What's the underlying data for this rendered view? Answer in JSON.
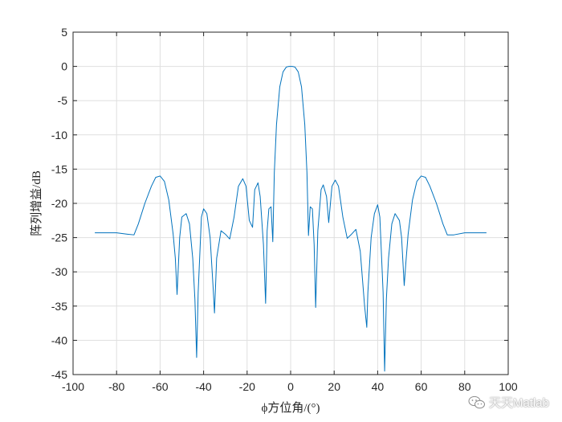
{
  "chart_data": {
    "type": "line",
    "title": "",
    "xlabel": "ϕ方位角/(°)",
    "ylabel": "阵列增益/dB",
    "xlim": [
      -100,
      100
    ],
    "ylim": [
      -45,
      5
    ],
    "xticks": [
      -100,
      -80,
      -60,
      -40,
      -20,
      0,
      20,
      40,
      60,
      80,
      100
    ],
    "yticks": [
      5,
      0,
      -5,
      -10,
      -15,
      -20,
      -25,
      -30,
      -35,
      -40,
      -45
    ],
    "grid": true,
    "legend": "none",
    "series": [
      {
        "color": "#0072BD",
        "x": [
          -90,
          -80,
          -75,
          -72,
          -70,
          -67,
          -64,
          -62,
          -60,
          -58,
          -56,
          -54,
          -53,
          -52.2,
          -51,
          -50,
          -48,
          -46.5,
          -45,
          -44,
          -43.2,
          -42.5,
          -41,
          -40,
          -38.5,
          -37,
          -35.5,
          -35,
          -34,
          -32,
          -30,
          -28,
          -26,
          -24,
          -22,
          -20.5,
          -19,
          -17.5,
          -16.5,
          -15,
          -14,
          -12.5,
          -11.5,
          -10.8,
          -10,
          -9,
          -8.2,
          -7.5,
          -6.5,
          -5,
          -3.5,
          -2,
          -0.8,
          0,
          0.8,
          2,
          3.5,
          5,
          6.5,
          7.5,
          8.2,
          9,
          10,
          10.8,
          11.5,
          12.5,
          14,
          15,
          16.5,
          17.5,
          19,
          20.5,
          22,
          24,
          26,
          28,
          30,
          32,
          34,
          35,
          35.5,
          37,
          38.5,
          40,
          41,
          42.5,
          43.2,
          44,
          45,
          46.5,
          48,
          50,
          51,
          52.2,
          53,
          54,
          56,
          58,
          60,
          62,
          64,
          67,
          70,
          72,
          75,
          80,
          90
        ],
        "y": [
          -24.3,
          -24.3,
          -24.5,
          -24.6,
          -23,
          -20,
          -17.5,
          -16.2,
          -16,
          -16.8,
          -19.5,
          -24.5,
          -28,
          -33.3,
          -25,
          -22,
          -21.5,
          -23,
          -28,
          -34,
          -42.5,
          -33,
          -22,
          -20.8,
          -21.5,
          -25,
          -33,
          -36,
          -28,
          -24,
          -24.5,
          -25.2,
          -22,
          -17.5,
          -16.4,
          -17.5,
          -22.5,
          -23.5,
          -18,
          -17,
          -19,
          -26,
          -34.6,
          -24,
          -20.8,
          -20.5,
          -25.6,
          -15.5,
          -8.5,
          -3,
          -0.8,
          -0.1,
          0,
          0,
          0,
          -0.1,
          -0.8,
          -3,
          -8.5,
          -15.5,
          -24.7,
          -20.5,
          -20.8,
          -26,
          -35.2,
          -24,
          -18,
          -17.3,
          -19,
          -22.8,
          -17.5,
          -16.6,
          -17.5,
          -22,
          -25.1,
          -24.5,
          -23.8,
          -27,
          -35,
          -38.1,
          -33,
          -25,
          -21.5,
          -20.2,
          -22,
          -33,
          -44.5,
          -34,
          -28,
          -23,
          -21.5,
          -22.5,
          -25,
          -32,
          -28.5,
          -24.5,
          -19.5,
          -16.8,
          -16,
          -16.2,
          -17.5,
          -20,
          -23,
          -24.6,
          -24.6,
          -24.3,
          -24.3
        ]
      }
    ]
  },
  "watermark": {
    "text": "天天Matlab",
    "icon": "wechat-icon"
  }
}
